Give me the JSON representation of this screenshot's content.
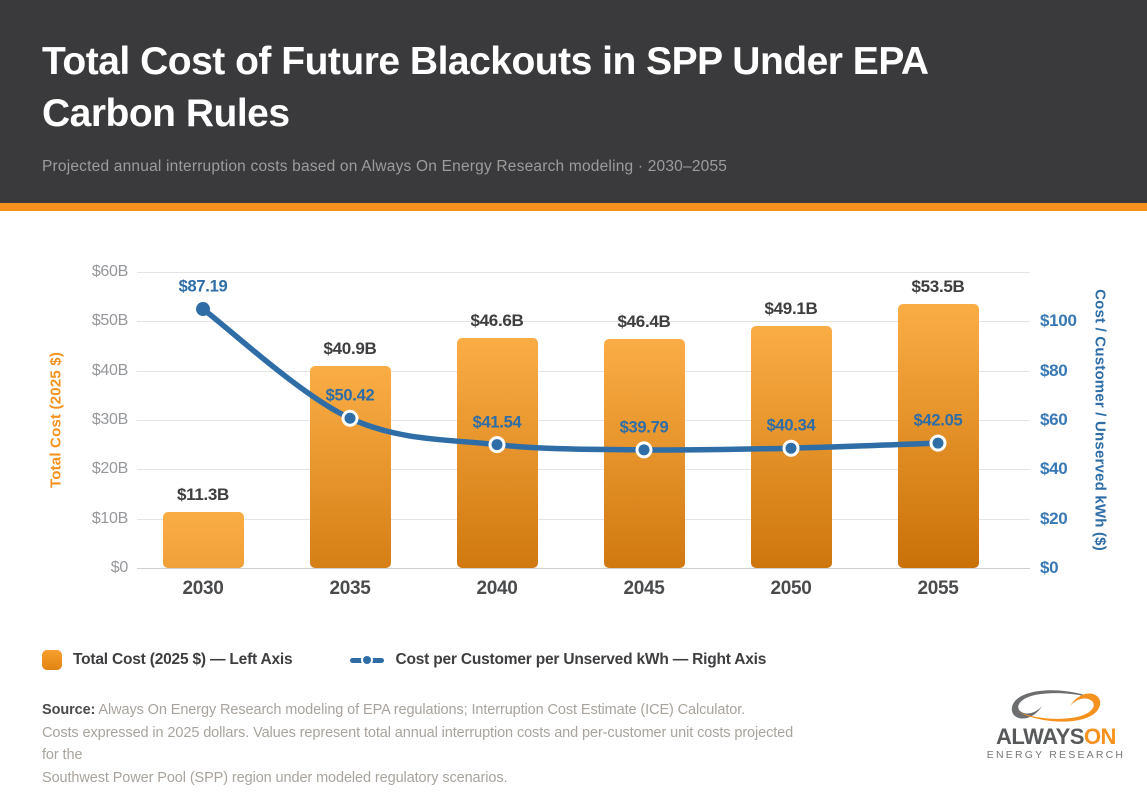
{
  "header": {
    "title_line1": "Total Cost of Future Blackouts in SPP Under EPA",
    "title_line2": "Carbon Rules",
    "subtitle": "Projected annual interruption costs based on Always On Energy Research modeling  ·  2030–2055"
  },
  "colors": {
    "header_bg": "#3a3a3c",
    "accent_orange": "#f5921f",
    "bar_gradient_top": "#fbad45",
    "bar_gradient_bottom": "#c97108",
    "line_blue": "#2e6da6",
    "right_tick_blue": "#3878b4",
    "grid_gray": "#e4e4e4",
    "bar_value_label": "#3e3e40",
    "left_tick_gray": "#95979a",
    "source_gray": "#a8a39c"
  },
  "chart_data": {
    "type": "bar",
    "subtype": "dual-axis bar + line",
    "categories": [
      "2030",
      "2035",
      "2040",
      "2045",
      "2050",
      "2055"
    ],
    "series": [
      {
        "name": "Total Cost (2025 $) — Left Axis",
        "type": "bar",
        "axis": "left",
        "values": [
          11.3,
          40.9,
          46.6,
          46.4,
          49.1,
          53.5
        ],
        "labels": [
          "$11.3B",
          "$40.9B",
          "$46.6B",
          "$46.4B",
          "$49.1B",
          "$53.5B"
        ]
      },
      {
        "name": "Cost per Customer per Unserved kWh — Right Axis",
        "type": "line",
        "axis": "right",
        "values": [
          87.19,
          50.42,
          41.54,
          39.79,
          40.34,
          42.05
        ],
        "labels": [
          "$87.19",
          "$50.42",
          "$41.54",
          "$39.79",
          "$40.34",
          "$42.05"
        ]
      }
    ],
    "left_axis": {
      "title": "Total Cost (2025 $)",
      "ticks": [
        "$0",
        "$10B",
        "$20B",
        "$30B",
        "$40B",
        "$50B",
        "$60B"
      ],
      "range": [
        0,
        60
      ]
    },
    "right_axis": {
      "title": "Cost / Customer / Unserved kWh ($)",
      "ticks": [
        "$0",
        "$20",
        "$40",
        "$60",
        "$80",
        "$100"
      ],
      "range": [
        0,
        100
      ]
    },
    "grid": true,
    "legend_position": "bottom-left"
  },
  "legend": {
    "bar_label": "Total Cost (2025 $) — Left Axis",
    "line_label": "Cost per Customer per Unserved kWh — Right Axis"
  },
  "source": {
    "label": "Source:",
    "line1_rest": " Always On Energy Research modeling of EPA regulations; Interruption Cost Estimate (ICE) Calculator.",
    "line2": "Costs expressed in 2025 dollars. Values represent total annual interruption costs and per-customer unit costs projected for the",
    "line3": "Southwest Power Pool (SPP) region under modeled regulatory scenarios."
  },
  "logo": {
    "word_part1": "ALWAYS",
    "word_part2": "ON",
    "tagline": "ENERGY RESEARCH"
  }
}
